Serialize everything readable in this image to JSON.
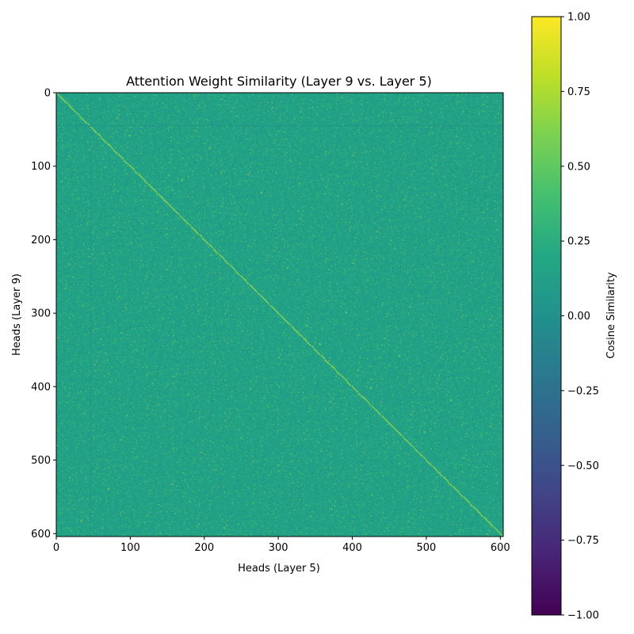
{
  "chart_data": {
    "type": "heatmap",
    "title": "Attention Weight Similarity (Layer 9 vs. Layer 5)",
    "xlabel": "Heads (Layer 5)",
    "ylabel": "Heads (Layer 9)",
    "colorbar_label": "Cosine Similarity",
    "colormap": "viridis",
    "n_rows": 604,
    "n_cols": 604,
    "xlim": [
      0,
      604
    ],
    "ylim": [
      604,
      0
    ],
    "vmin": -1.0,
    "vmax": 1.0,
    "x_ticks": [
      {
        "value": 0,
        "label": "0"
      },
      {
        "value": 100,
        "label": "100"
      },
      {
        "value": 200,
        "label": "200"
      },
      {
        "value": 300,
        "label": "300"
      },
      {
        "value": 400,
        "label": "400"
      },
      {
        "value": 500,
        "label": "500"
      },
      {
        "value": 600,
        "label": "600"
      }
    ],
    "y_ticks": [
      {
        "value": 0,
        "label": "0"
      },
      {
        "value": 100,
        "label": "100"
      },
      {
        "value": 200,
        "label": "200"
      },
      {
        "value": 300,
        "label": "300"
      },
      {
        "value": 400,
        "label": "400"
      },
      {
        "value": 500,
        "label": "500"
      },
      {
        "value": 600,
        "label": "600"
      }
    ],
    "colorbar_ticks": [
      {
        "value": 1.0,
        "label": "1.00"
      },
      {
        "value": 0.75,
        "label": "0.75"
      },
      {
        "value": 0.5,
        "label": "0.50"
      },
      {
        "value": 0.25,
        "label": "0.25"
      },
      {
        "value": 0.0,
        "label": "0.00"
      },
      {
        "value": -0.25,
        "label": "−0.25"
      },
      {
        "value": -0.5,
        "label": "−0.50"
      },
      {
        "value": -0.75,
        "label": "−0.75"
      },
      {
        "value": -1.0,
        "label": "−1.00"
      }
    ],
    "background_mean": 0.15,
    "diagonal_value": 0.85,
    "bands": [
      {
        "axis": "row",
        "index": 44,
        "value": 0.02
      },
      {
        "axis": "col",
        "index": 46,
        "value": 0.04
      }
    ],
    "grid": false
  }
}
